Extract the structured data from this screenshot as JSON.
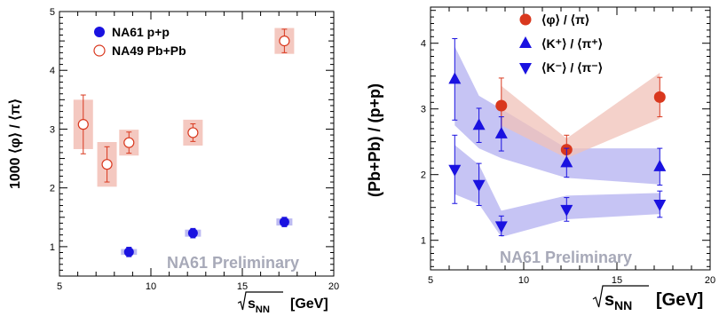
{
  "colors": {
    "na61": "#1a12e0",
    "na49": "#d9381e",
    "na49_band": "#f4c8c0",
    "pb_phi_band": "#f0c2b8",
    "pb_k_band": "#bcbaf2"
  },
  "chart_data": [
    {
      "type": "scatter",
      "ylabel": "1000 ⟨φ⟩ / ⟨π⟩",
      "xlabel": "√s_NN [GeV]",
      "xlabel_sqrt": "s",
      "xlabel_sub": "NN",
      "xlabel_unit": "[GeV]",
      "xlim": [
        5,
        20
      ],
      "ylim": [
        0.5,
        5
      ],
      "xticks": [
        "5",
        "10",
        "15",
        "20"
      ],
      "yticks": [
        "1",
        "2",
        "3",
        "4",
        "5"
      ],
      "annotation": "NA61 Preliminary",
      "legend_position": "top-left",
      "series": [
        {
          "name": "NA61 p+p",
          "marker": "filled-circle",
          "points": [
            {
              "x": 8.8,
              "y": 0.91,
              "err": 0.08,
              "sys": 0.05
            },
            {
              "x": 12.3,
              "y": 1.23,
              "err": 0.08,
              "sys": 0.06
            },
            {
              "x": 17.3,
              "y": 1.42,
              "err": 0.08,
              "sys": 0.06
            }
          ]
        },
        {
          "name": "NA49 Pb+Pb",
          "marker": "open-circle",
          "points": [
            {
              "x": 6.3,
              "y": 3.08,
              "err": 0.5,
              "sys": 0.42
            },
            {
              "x": 7.6,
              "y": 2.4,
              "err": 0.3,
              "sys": 0.38
            },
            {
              "x": 8.8,
              "y": 2.77,
              "err": 0.18,
              "sys": 0.22
            },
            {
              "x": 12.3,
              "y": 2.94,
              "err": 0.15,
              "sys": 0.22
            },
            {
              "x": 17.3,
              "y": 4.5,
              "err": 0.2,
              "sys": 0.22
            }
          ]
        }
      ]
    },
    {
      "type": "scatter",
      "ylabel": "(Pb+Pb) / (p+p)",
      "xlabel": "√s_NN [GeV]",
      "xlabel_sqrt": "s",
      "xlabel_sub": "NN",
      "xlabel_unit": "[GeV]",
      "xlim": [
        5,
        20
      ],
      "ylim": [
        0.55,
        4.55
      ],
      "xticks": [
        "5",
        "10",
        "15",
        "20"
      ],
      "yticks": [
        "1",
        "2",
        "3",
        "4"
      ],
      "annotation": "NA61 Preliminary",
      "legend_position": "top-center",
      "series": [
        {
          "name": "⟨φ⟩ / ⟨π⟩",
          "marker": "filled-circle",
          "color": "#d9381e",
          "band": {
            "x": [
              8.8,
              12.3,
              17.3
            ],
            "low": [
              2.75,
              2.25,
              2.85
            ],
            "high": [
              3.35,
              2.55,
              3.55
            ]
          },
          "points": [
            {
              "x": 8.8,
              "y": 3.05,
              "err": 0.42
            },
            {
              "x": 12.3,
              "y": 2.38,
              "err": 0.22
            },
            {
              "x": 17.3,
              "y": 3.18,
              "err": 0.3
            }
          ]
        },
        {
          "name": "⟨K⁺⟩ / ⟨π⁺⟩",
          "marker": "triangle-up",
          "color": "#1a12e0",
          "band": {
            "x": [
              6.3,
              7.6,
              8.8,
              12.3,
              17.3
            ],
            "low": [
              2.75,
              2.4,
              2.25,
              1.95,
              1.85
            ],
            "high": [
              3.95,
              3.2,
              3.0,
              2.4,
              2.4
            ]
          },
          "points": [
            {
              "x": 6.3,
              "y": 3.45,
              "err": 0.62
            },
            {
              "x": 7.6,
              "y": 2.75,
              "err": 0.26
            },
            {
              "x": 8.8,
              "y": 2.62,
              "err": 0.26
            },
            {
              "x": 12.3,
              "y": 2.18,
              "err": 0.22
            },
            {
              "x": 17.3,
              "y": 2.12,
              "err": 0.28
            }
          ]
        },
        {
          "name": "⟨K⁻⟩ / ⟨π⁻⟩",
          "marker": "triangle-down",
          "color": "#1a12e0",
          "band": {
            "x": [
              6.3,
              7.6,
              8.8,
              12.3,
              17.3
            ],
            "low": [
              1.7,
              1.55,
              1.05,
              1.32,
              1.4
            ],
            "high": [
              2.45,
              2.15,
              1.45,
              1.68,
              1.72
            ]
          },
          "points": [
            {
              "x": 6.3,
              "y": 2.08,
              "err": 0.52
            },
            {
              "x": 7.6,
              "y": 1.85,
              "err": 0.32
            },
            {
              "x": 8.8,
              "y": 1.22,
              "err": 0.15
            },
            {
              "x": 12.3,
              "y": 1.47,
              "err": 0.18
            },
            {
              "x": 17.3,
              "y": 1.55,
              "err": 0.2
            }
          ]
        }
      ]
    }
  ]
}
